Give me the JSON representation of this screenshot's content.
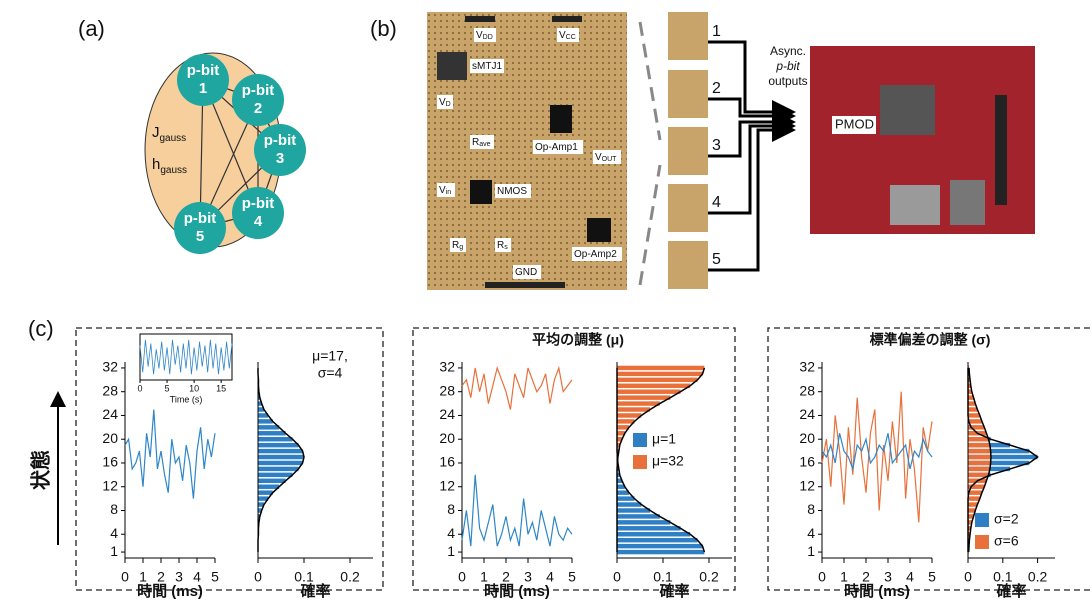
{
  "panel_labels": [
    "(a)",
    "(b)",
    "(c)"
  ],
  "diagram": {
    "nodes": [
      {
        "label": "p-bit",
        "number": "1"
      },
      {
        "label": "p-bit",
        "number": "2"
      },
      {
        "label": "p-bit",
        "number": "3"
      },
      {
        "label": "p-bit",
        "number": "4"
      },
      {
        "label": "p-bit",
        "number": "5"
      }
    ],
    "weights": {
      "main": "J",
      "sub": "gauss"
    },
    "biases": {
      "main": "h",
      "sub": "gauss"
    }
  },
  "photo": {
    "labels": [
      {
        "main": "V",
        "sub": "DD"
      },
      {
        "main": "V",
        "sub": "CC"
      },
      {
        "main": "sMTJ1",
        "sub": ""
      },
      {
        "main": "V",
        "sub": "D"
      },
      {
        "main": "R",
        "sub": "ave"
      },
      {
        "main": "Op-Amp1",
        "sub": ""
      },
      {
        "main": "V",
        "sub": "OUT"
      },
      {
        "main": "V",
        "sub": "in"
      },
      {
        "main": "NMOS",
        "sub": ""
      },
      {
        "main": "R",
        "sub": "g"
      },
      {
        "main": "R",
        "sub": "s"
      },
      {
        "main": "Op-Amp2",
        "sub": ""
      },
      {
        "main": "GND",
        "sub": ""
      }
    ],
    "outputs": [
      "1",
      "2",
      "3",
      "4",
      "5"
    ],
    "output_caption": [
      "Async.",
      "p-bit",
      "outputs"
    ],
    "fpga_label": "PMOD"
  },
  "y_axis_label": "状態",
  "chart_data": [
    {
      "type": "line",
      "xlabel": "Time (s)",
      "x": [
        0,
        0.5,
        1,
        1.5,
        2,
        2.5,
        3,
        3.5,
        4,
        4.5,
        5,
        5.5,
        6,
        6.5,
        7,
        7.5,
        8,
        8.5,
        9,
        9.5,
        10,
        10.5,
        11,
        11.5,
        12,
        12.5,
        13,
        13.5,
        14,
        14.5,
        15,
        15.5,
        16,
        16.5,
        17
      ],
      "series": [
        {
          "color": "#2e86c8",
          "values": [
            0.6,
            -0.8,
            0.9,
            -0.5,
            0.7,
            -0.9,
            0.4,
            -0.6,
            0.8,
            -0.7,
            0.5,
            -0.9,
            0.9,
            -0.4,
            0.6,
            -0.8,
            0.7,
            -0.6,
            0.9,
            -0.9,
            0.5,
            -0.7,
            0.8,
            -0.5,
            0.6,
            -0.8,
            0.9,
            -0.6,
            0.7,
            -0.9,
            0.5,
            -0.7,
            0.8,
            -0.6,
            0.7
          ]
        }
      ],
      "xlim": [
        0,
        17
      ],
      "xticks": [
        0,
        5,
        10,
        15
      ],
      "ylim": [
        -1.2,
        1.2
      ]
    },
    {
      "type": "line",
      "xlabel": "時間 (ms)",
      "x": [
        0,
        0.2,
        0.4,
        0.6,
        0.8,
        1,
        1.2,
        1.4,
        1.6,
        1.8,
        2,
        2.2,
        2.4,
        2.6,
        2.8,
        3,
        3.2,
        3.4,
        3.6,
        3.8,
        4,
        4.2,
        4.4,
        4.6,
        4.8,
        5
      ],
      "series": [
        {
          "color": "#2e86c8",
          "values": [
            19,
            20,
            15,
            16,
            18,
            12,
            21,
            17,
            25,
            15,
            18,
            14,
            11,
            20,
            16,
            17,
            13,
            19,
            16,
            10,
            18,
            22,
            15,
            20,
            17,
            21
          ]
        }
      ],
      "xlim": [
        0,
        5
      ],
      "xticks": [
        0,
        1,
        2,
        3,
        4,
        5
      ],
      "ylim": [
        0,
        33
      ],
      "yticks": [
        1,
        4,
        8,
        12,
        16,
        20,
        24,
        28,
        32
      ]
    },
    {
      "type": "barh",
      "xlabel": "確率",
      "annotations": [
        "μ=17,",
        "σ=4"
      ],
      "y": [
        1,
        2,
        3,
        4,
        5,
        6,
        7,
        8,
        9,
        10,
        11,
        12,
        13,
        14,
        15,
        16,
        17,
        18,
        19,
        20,
        21,
        22,
        23,
        24,
        25,
        26,
        27,
        28,
        29,
        30,
        31,
        32
      ],
      "series": [
        {
          "color": "#2e7fc4",
          "values": [
            0,
            0,
            0,
            0.001,
            0.001,
            0.002,
            0.004,
            0.008,
            0.013,
            0.022,
            0.032,
            0.046,
            0.06,
            0.075,
            0.088,
            0.097,
            0.1,
            0.097,
            0.088,
            0.075,
            0.06,
            0.046,
            0.032,
            0.022,
            0.013,
            0.008,
            0.004,
            0.002,
            0.001,
            0.001,
            0,
            0
          ]
        }
      ],
      "curve_color": "#000000",
      "xlim": [
        0,
        0.25
      ],
      "xticks": [
        0,
        0.1,
        0.2
      ],
      "ylim": [
        0,
        33
      ]
    },
    {
      "type": "line",
      "title": "平均の調整 (μ)",
      "xlabel": "時間 (ms)",
      "x": [
        0,
        0.2,
        0.4,
        0.6,
        0.8,
        1,
        1.2,
        1.4,
        1.6,
        1.8,
        2,
        2.2,
        2.4,
        2.6,
        2.8,
        3,
        3.2,
        3.4,
        3.6,
        3.8,
        4,
        4.2,
        4.4,
        4.6,
        4.8,
        5
      ],
      "series": [
        {
          "color": "#2e86c8",
          "values": [
            3,
            8,
            2,
            14,
            5,
            3,
            6,
            9,
            2,
            4,
            7,
            3,
            5,
            2,
            10,
            4,
            6,
            3,
            8,
            5,
            2,
            7,
            4,
            3,
            5,
            4
          ]
        },
        {
          "color": "#e8703a",
          "values": [
            29,
            30,
            27,
            32,
            28,
            31,
            26,
            29,
            32,
            30,
            28,
            25,
            31,
            29,
            27,
            32,
            30,
            28,
            29,
            31,
            26,
            30,
            32,
            28,
            29,
            30
          ]
        }
      ],
      "xlim": [
        0,
        5
      ],
      "xticks": [
        0,
        1,
        2,
        3,
        4,
        5
      ],
      "ylim": [
        0,
        33
      ],
      "yticks": [
        1,
        4,
        8,
        12,
        16,
        20,
        24,
        28,
        32
      ]
    },
    {
      "type": "barh",
      "xlabel": "確率",
      "y": [
        1,
        2,
        3,
        4,
        5,
        6,
        7,
        8,
        9,
        10,
        11,
        12,
        13,
        14,
        15,
        16,
        17,
        18,
        19,
        20,
        21,
        22,
        23,
        24,
        25,
        26,
        27,
        28,
        29,
        30,
        31,
        32
      ],
      "series": [
        {
          "name": "μ=1",
          "color": "#2e7fc4",
          "values": [
            0.19,
            0.186,
            0.175,
            0.159,
            0.138,
            0.116,
            0.093,
            0.072,
            0.053,
            0.038,
            0.026,
            0.017,
            0.011,
            0.006,
            0.004,
            0.002,
            0.001,
            0,
            0,
            0,
            0,
            0,
            0,
            0,
            0,
            0,
            0,
            0,
            0,
            0,
            0,
            0
          ]
        },
        {
          "name": "μ=32",
          "color": "#e8703a",
          "values": [
            0,
            0,
            0,
            0,
            0,
            0,
            0,
            0,
            0,
            0,
            0,
            0,
            0,
            0,
            0,
            0.001,
            0.002,
            0.004,
            0.006,
            0.011,
            0.017,
            0.026,
            0.038,
            0.053,
            0.072,
            0.093,
            0.116,
            0.138,
            0.159,
            0.175,
            0.186,
            0.19
          ]
        }
      ],
      "curve_color": "#000000",
      "xlim": [
        0,
        0.25
      ],
      "xticks": [
        0,
        0.1,
        0.2
      ],
      "ylim": [
        0,
        33
      ]
    },
    {
      "type": "line",
      "title": "標準偏差の調整 (σ)",
      "xlabel": "時間 (ms)",
      "x": [
        0,
        0.2,
        0.4,
        0.6,
        0.8,
        1,
        1.2,
        1.4,
        1.6,
        1.8,
        2,
        2.2,
        2.4,
        2.6,
        2.8,
        3,
        3.2,
        3.4,
        3.6,
        3.8,
        4,
        4.2,
        4.4,
        4.6,
        4.8,
        5
      ],
      "series": [
        {
          "color": "#e8703a",
          "values": [
            16,
            20,
            12,
            24,
            18,
            9,
            22,
            14,
            27,
            17,
            11,
            21,
            25,
            8,
            19,
            13,
            23,
            16,
            28,
            10,
            20,
            15,
            6,
            22,
            18,
            23
          ]
        },
        {
          "color": "#2e86c8",
          "values": [
            18,
            17,
            19,
            16,
            21,
            18,
            17,
            15,
            19,
            18,
            20,
            16,
            17,
            19,
            18,
            21,
            16,
            17,
            18,
            19,
            15,
            18,
            17,
            20,
            18,
            17
          ]
        }
      ],
      "xlim": [
        0,
        5
      ],
      "xticks": [
        0,
        1,
        2,
        3,
        4,
        5
      ],
      "ylim": [
        0,
        33
      ],
      "yticks": [
        1,
        4,
        8,
        12,
        16,
        20,
        24,
        28,
        32
      ]
    },
    {
      "type": "barh",
      "xlabel": "確率",
      "y": [
        1,
        2,
        3,
        4,
        5,
        6,
        7,
        8,
        9,
        10,
        11,
        12,
        13,
        14,
        15,
        16,
        17,
        18,
        19,
        20,
        21,
        22,
        23,
        24,
        25,
        26,
        27,
        28,
        29,
        30,
        31,
        32
      ],
      "series": [
        {
          "name": "σ=2",
          "color": "#2e7fc4",
          "values": [
            0,
            0,
            0,
            0,
            0,
            0,
            0,
            0,
            0,
            0,
            0.002,
            0.009,
            0.027,
            0.065,
            0.121,
            0.176,
            0.2,
            0.176,
            0.121,
            0.065,
            0.027,
            0.009,
            0.002,
            0,
            0,
            0,
            0,
            0,
            0,
            0,
            0,
            0
          ]
        },
        {
          "name": "σ=6",
          "color": "#e8703a",
          "values": [
            0.002,
            0.003,
            0.004,
            0.006,
            0.008,
            0.011,
            0.016,
            0.021,
            0.027,
            0.034,
            0.04,
            0.047,
            0.053,
            0.059,
            0.063,
            0.065,
            0.066,
            0.065,
            0.063,
            0.059,
            0.053,
            0.047,
            0.04,
            0.034,
            0.027,
            0.021,
            0.016,
            0.011,
            0.008,
            0.006,
            0.004,
            0.003
          ]
        }
      ],
      "curve_color": "#000000",
      "xlim": [
        0,
        0.25
      ],
      "xticks": [
        0,
        0.1,
        0.2
      ],
      "ylim": [
        0,
        33
      ]
    }
  ]
}
